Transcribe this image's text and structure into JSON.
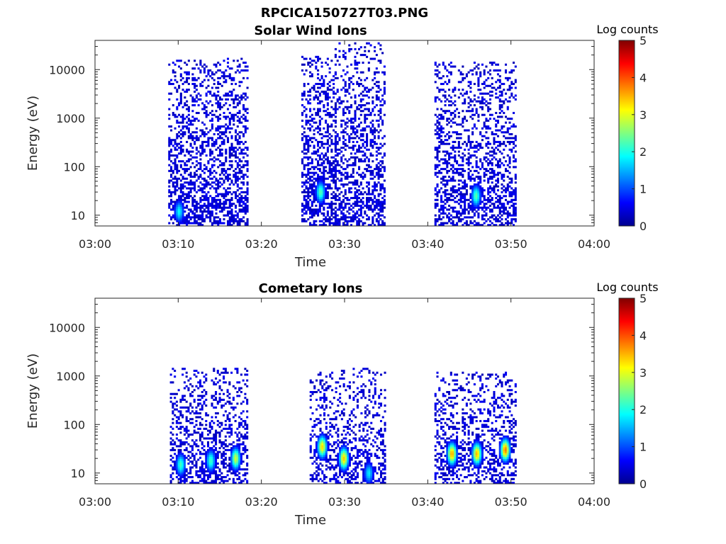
{
  "figure_title": "RPCICA150727T03.PNG",
  "chart_data": [
    {
      "type": "heatmap",
      "title": "Solar Wind Ions",
      "xlabel": "Time",
      "ylabel": "Energy (eV)",
      "x_ticks": [
        "03:00",
        "03:10",
        "03:20",
        "03:30",
        "03:40",
        "03:50",
        "04:00"
      ],
      "x_range_minutes": [
        0,
        60
      ],
      "y_scale": "log",
      "y_ticks": [
        "10",
        "100",
        "1000",
        "10000"
      ],
      "y_range": [
        6,
        40000
      ],
      "colorbar": {
        "label": "Log counts",
        "range": [
          0,
          5
        ],
        "ticks": [
          "0",
          "1",
          "2",
          "3",
          "4",
          "5"
        ],
        "colormap": "jet"
      },
      "bursts": [
        {
          "t_start_min": 8.8,
          "t_end_min": 18.3,
          "e_low": 6,
          "e_high": 18000,
          "density": 0.5,
          "hotspots": [
            {
              "t_min": 10.0,
              "energy": 12,
              "log_counts": 1.9
            }
          ]
        },
        {
          "t_start_min": 24.8,
          "t_end_min": 28.8,
          "e_low": 6,
          "e_high": 20000,
          "density": 0.5,
          "hotspots": [
            {
              "t_min": 27.0,
              "energy": 30,
              "log_counts": 2.3
            }
          ]
        },
        {
          "t_start_min": 28.8,
          "t_end_min": 34.8,
          "e_low": 6,
          "e_high": 35000,
          "density": 0.45,
          "hotspots": []
        },
        {
          "t_start_min": 40.8,
          "t_end_min": 50.5,
          "e_low": 6,
          "e_high": 15000,
          "density": 0.45,
          "hotspots": [
            {
              "t_min": 45.7,
              "energy": 25,
              "log_counts": 2.3
            }
          ]
        }
      ]
    },
    {
      "type": "heatmap",
      "title": "Cometary Ions",
      "xlabel": "Time",
      "ylabel": "Energy (eV)",
      "x_ticks": [
        "03:00",
        "03:10",
        "03:20",
        "03:30",
        "03:40",
        "03:50",
        "04:00"
      ],
      "x_range_minutes": [
        0,
        60
      ],
      "y_scale": "log",
      "y_ticks": [
        "10",
        "100",
        "1000",
        "10000"
      ],
      "y_range": [
        6,
        40000
      ],
      "colorbar": {
        "label": "Log counts",
        "range": [
          0,
          5
        ],
        "ticks": [
          "0",
          "1",
          "2",
          "3",
          "4",
          "5"
        ],
        "colormap": "jet"
      },
      "bursts": [
        {
          "t_start_min": 9.0,
          "t_end_min": 18.3,
          "e_low": 6,
          "e_high": 1500,
          "density": 0.4,
          "hotspots": [
            {
              "t_min": 10.2,
              "energy": 15,
              "log_counts": 2.2
            },
            {
              "t_min": 13.8,
              "energy": 18,
              "log_counts": 2.2
            },
            {
              "t_min": 16.8,
              "energy": 20,
              "log_counts": 2.9
            }
          ]
        },
        {
          "t_start_min": 25.8,
          "t_end_min": 34.8,
          "e_low": 6,
          "e_high": 1500,
          "density": 0.35,
          "hotspots": [
            {
              "t_min": 27.2,
              "energy": 35,
              "log_counts": 3.3
            },
            {
              "t_min": 29.8,
              "energy": 20,
              "log_counts": 3.4
            },
            {
              "t_min": 32.8,
              "energy": 10,
              "log_counts": 1.8
            }
          ]
        },
        {
          "t_start_min": 40.8,
          "t_end_min": 50.5,
          "e_low": 6,
          "e_high": 1200,
          "density": 0.4,
          "hotspots": [
            {
              "t_min": 42.8,
              "energy": 25,
              "log_counts": 3.6
            },
            {
              "t_min": 45.8,
              "energy": 25,
              "log_counts": 3.5
            },
            {
              "t_min": 49.2,
              "energy": 30,
              "log_counts": 3.8
            }
          ]
        }
      ]
    }
  ]
}
